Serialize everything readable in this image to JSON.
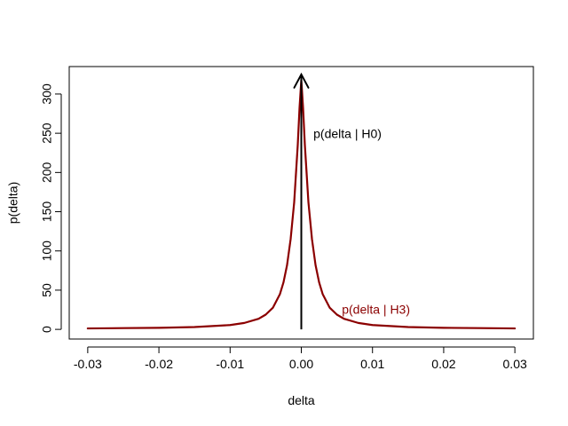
{
  "chart_data": {
    "type": "line",
    "title": "",
    "xlabel": "delta",
    "ylabel": "p(delta)",
    "xlim": [
      -0.03,
      0.03
    ],
    "ylim": [
      0,
      320
    ],
    "x_ticks": [
      -0.03,
      -0.02,
      -0.01,
      0.0,
      0.01,
      0.02,
      0.03
    ],
    "x_tick_labels": [
      "-0.03",
      "-0.02",
      "-0.01",
      "0.00",
      "0.01",
      "0.02",
      "0.03"
    ],
    "y_ticks": [
      0,
      50,
      100,
      150,
      200,
      250,
      300
    ],
    "y_tick_labels": [
      "0",
      "50",
      "100",
      "150",
      "200",
      "250",
      "300"
    ],
    "grid": false,
    "series": [
      {
        "name": "p(delta | H3)",
        "color": "#8b0000",
        "x": [
          -0.03,
          -0.025,
          -0.02,
          -0.015,
          -0.01,
          -0.008,
          -0.006,
          -0.005,
          -0.004,
          -0.003,
          -0.0025,
          -0.002,
          -0.0015,
          -0.001,
          -0.0005,
          -0.00025,
          0.0,
          0.00025,
          0.0005,
          0.001,
          0.0015,
          0.002,
          0.0025,
          0.003,
          0.004,
          0.005,
          0.006,
          0.008,
          0.01,
          0.015,
          0.02,
          0.025,
          0.03
        ],
        "y": [
          1.2,
          1.6,
          2.0,
          3.0,
          5.5,
          8.2,
          13.5,
          18.8,
          27.5,
          45.0,
          60.0,
          82.0,
          115.0,
          162.0,
          235.0,
          282.0,
          318.0,
          282.0,
          235.0,
          162.0,
          115.0,
          82.0,
          60.0,
          45.0,
          27.5,
          18.8,
          13.5,
          8.2,
          5.5,
          3.0,
          2.0,
          1.6,
          1.2
        ]
      }
    ],
    "spike": {
      "name": "p(delta | H0)",
      "color": "#000000",
      "x": 0.0,
      "y_from": 0,
      "y_to": 325
    },
    "annotations": [
      {
        "text": "p(delta | H0)",
        "x": 0.0017,
        "y": 248,
        "color": "#000000"
      },
      {
        "text": "p(delta | H3)",
        "x": 0.0057,
        "y": 24,
        "color": "#8b0000"
      }
    ]
  }
}
